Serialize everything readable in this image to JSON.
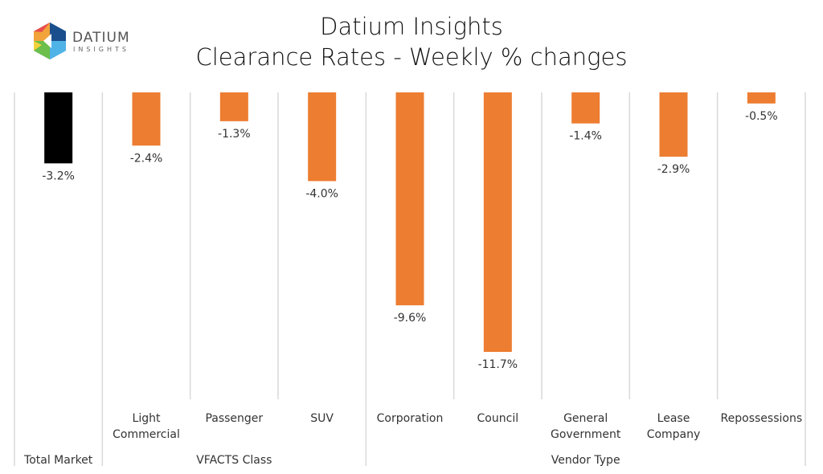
{
  "logo": {
    "name": "DATIUM",
    "sub": "INSIGHTS"
  },
  "chart_data": {
    "type": "bar",
    "title": "Datium Insights",
    "subtitle": "Clearance Rates - Weekly % changes",
    "categories": [
      "Total Market",
      "Light Commercial",
      "Passenger",
      "SUV",
      "Corporation",
      "Council",
      "General Government",
      "Lease Company",
      "Repossessions"
    ],
    "category_lines": [
      [
        "Total Market"
      ],
      [
        "Light",
        "Commercial"
      ],
      [
        "Passenger"
      ],
      [
        "SUV"
      ],
      [
        "Corporation"
      ],
      [
        "Council"
      ],
      [
        "General",
        "Government"
      ],
      [
        "Lease",
        "Company"
      ],
      [
        "Repossessions"
      ]
    ],
    "groups": [
      {
        "label": "Total Market",
        "count": 1
      },
      {
        "label": "VFACTS Class",
        "count": 3
      },
      {
        "label": "Vendor Type",
        "count": 5
      }
    ],
    "values": [
      -3.2,
      -2.4,
      -1.3,
      -4.0,
      -9.6,
      -11.7,
      -1.4,
      -2.9,
      -0.5
    ],
    "data_labels": [
      "-3.2%",
      "-2.4%",
      "-1.3%",
      "-4.0%",
      "-9.6%",
      "-11.7%",
      "-1.4%",
      "-2.9%",
      "-0.5%"
    ],
    "colors": [
      "#000000",
      "#ED7D31",
      "#ED7D31",
      "#ED7D31",
      "#ED7D31",
      "#ED7D31",
      "#ED7D31",
      "#ED7D31",
      "#ED7D31"
    ],
    "ylim": [
      -13.8,
      0
    ],
    "grid": false,
    "legend": "none"
  }
}
